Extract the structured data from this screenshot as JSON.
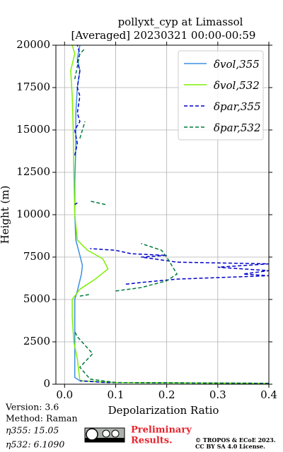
{
  "chart_data": {
    "type": "line",
    "title": "pollyxt_cyp at Limassol",
    "subtitle": "[Averaged] 20230321 00:00-00:59",
    "xlabel": "Depolarization Ratio",
    "ylabel": "Height (m)",
    "xlim": [
      -0.017,
      0.4
    ],
    "ylim": [
      0,
      20000
    ],
    "xticks": [
      {
        "value": 0,
        "label": "0.0"
      },
      0.1,
      0.2,
      0.3,
      0.4
    ],
    "yticks": [
      0,
      2500,
      5000,
      7500,
      10000,
      12500,
      15000,
      17500,
      20000
    ],
    "grid": true,
    "legend": "upper right",
    "series": [
      {
        "name": "δvol,355",
        "color": "#3b8fe3",
        "dashed": false,
        "x": [
          0.4,
          0.1,
          0.03,
          0.02,
          0.02,
          0.02,
          0.025,
          0.033,
          0.035,
          0.03,
          0.022,
          0.02,
          0.02,
          0.022,
          0.022,
          0.025,
          0.03,
          0.025,
          0.03
        ],
        "y": [
          50,
          100,
          200,
          400,
          2500,
          5000,
          5500,
          6500,
          7000,
          7600,
          8500,
          10000,
          12000,
          14000,
          16000,
          17500,
          18500,
          19200,
          20000
        ]
      },
      {
        "name": "δvol,532",
        "color": "#7cf000",
        "dashed": false,
        "x": [
          0.4,
          0.1,
          0.03,
          0.025,
          0.018,
          0.015,
          0.015,
          0.03,
          0.06,
          0.085,
          0.075,
          0.045,
          0.025,
          0.02,
          0.018,
          0.017,
          0.015,
          0.012,
          0.02,
          0.015
        ],
        "y": [
          50,
          100,
          200,
          1500,
          2500,
          4000,
          5000,
          5600,
          6200,
          6800,
          7400,
          7900,
          8500,
          10000,
          12500,
          15000,
          17000,
          18500,
          19500,
          20000
        ]
      },
      {
        "name": "δpar,355",
        "color": "#0000cc",
        "dashed": true,
        "x": [
          0.4,
          0.08,
          0.03,
          null,
          0.12,
          0.15,
          0.22,
          0.4,
          0.35,
          0.4,
          0.3,
          0.4,
          0.22,
          0.15,
          0.2,
          0.13,
          0.1,
          0.05,
          null,
          0.02,
          0.025,
          null,
          0.02,
          0.025,
          0.02,
          0.03,
          0.025,
          0.03,
          0.025,
          0.03,
          0.025,
          0.03,
          0.025
        ],
        "y": [
          50,
          100,
          200,
          null,
          5900,
          6000,
          6200,
          6400,
          6500,
          6700,
          6900,
          7100,
          7200,
          7500,
          7600,
          7700,
          7900,
          8000,
          null,
          10600,
          10700,
          null,
          13500,
          14200,
          15000,
          15500,
          16000,
          17000,
          17500,
          18500,
          19000,
          19500,
          20000
        ]
      },
      {
        "name": "δpar,532",
        "color": "#007a3d",
        "dashed": true,
        "x": [
          0.4,
          0.1,
          0.05,
          0.03,
          0.055,
          0.04,
          0.025,
          0.02,
          null,
          0.03,
          0.05,
          null,
          0.1,
          0.15,
          0.2,
          0.22,
          0.21,
          0.2,
          0.19,
          0.15,
          null,
          0.08,
          0.05,
          null,
          0.03,
          0.04,
          null,
          0.02,
          0.03,
          0.04
        ],
        "y": [
          30,
          100,
          300,
          1000,
          1800,
          2300,
          2800,
          3100,
          null,
          5200,
          5300,
          null,
          5500,
          5700,
          6100,
          6500,
          7000,
          7500,
          7900,
          8300,
          null,
          10600,
          10800,
          null,
          14500,
          15500,
          null,
          18000,
          19500,
          19800
        ]
      }
    ]
  },
  "footer": {
    "version": "Version: 3.6",
    "method": "Method: Raman",
    "eta355": "η355:  15.05",
    "eta532": "η532: 6.1090",
    "preliminary": [
      "Preliminary",
      "Results."
    ],
    "copyright": [
      "© TROPOS & ECoE 2023.",
      "CC BY SA 4.0 License."
    ]
  }
}
